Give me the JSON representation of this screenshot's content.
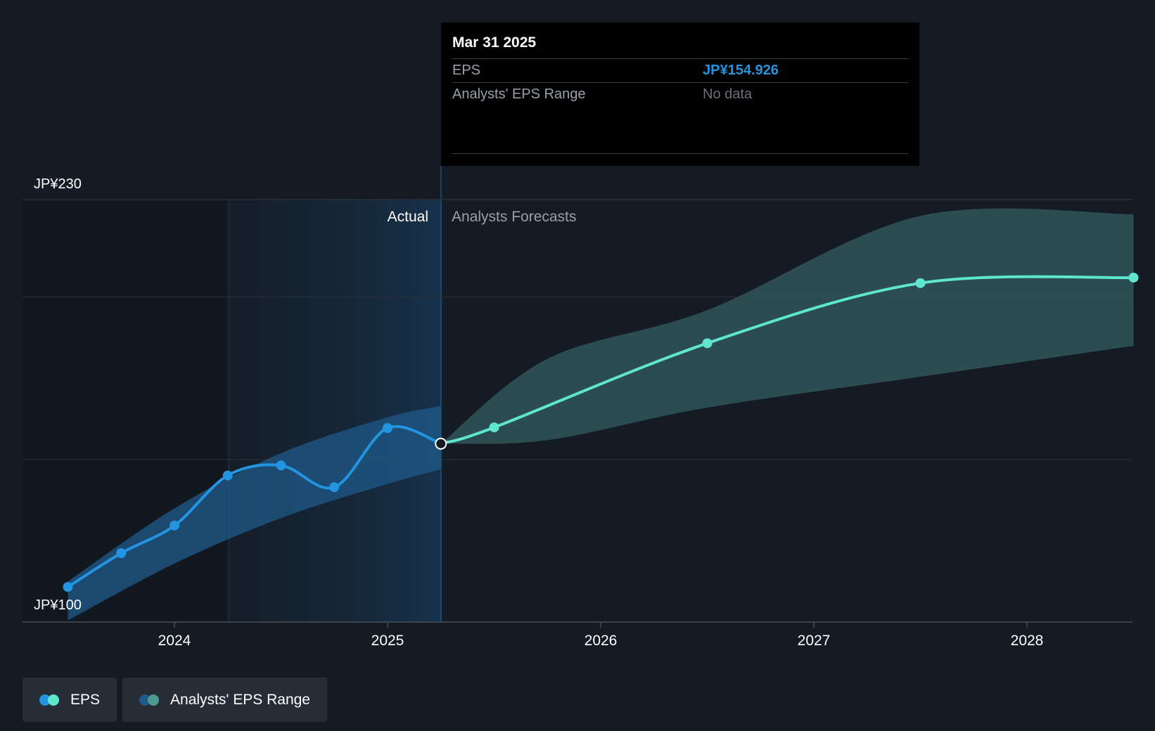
{
  "tooltip": {
    "date": "Mar 31 2025",
    "rows": [
      {
        "label": "EPS",
        "value": "JP¥154.926"
      },
      {
        "label": "Analysts' EPS Range",
        "value": "No data"
      }
    ]
  },
  "colors": {
    "background": "#151b24",
    "actual_line": "#2394df",
    "forecast_line": "#5ee6cf",
    "actual_band": "#1f5a8a",
    "forecast_band": "#2d5356"
  },
  "legend": [
    {
      "label": "EPS",
      "icon": "two-dot-eps-icon"
    },
    {
      "label": "Analysts' EPS Range",
      "icon": "two-dot-range-icon"
    }
  ],
  "chart_data": {
    "type": "line",
    "ylim": [
      100,
      230
    ],
    "y_tick_labels": [
      "JP¥230",
      "JP¥100"
    ],
    "x_tick_labels": [
      "2024",
      "2025",
      "2026",
      "2027",
      "2028"
    ],
    "region_labels": {
      "actual": "Actual",
      "forecast": "Analysts Forecasts"
    },
    "grid": true,
    "legend_position": "bottom-left",
    "series": [
      {
        "name": "EPS",
        "segment": "actual",
        "points": [
          {
            "x": 2023.5,
            "y": 110.8
          },
          {
            "x": 2023.75,
            "y": 121.2
          },
          {
            "x": 2024.0,
            "y": 129.7
          },
          {
            "x": 2024.25,
            "y": 145.1
          },
          {
            "x": 2024.5,
            "y": 148.2
          },
          {
            "x": 2024.75,
            "y": 141.5
          },
          {
            "x": 2025.0,
            "y": 159.7
          },
          {
            "x": 2025.25,
            "y": 154.9
          }
        ]
      },
      {
        "name": "EPS",
        "segment": "forecast",
        "points": [
          {
            "x": 2025.25,
            "y": 154.9
          },
          {
            "x": 2025.5,
            "y": 159.9
          },
          {
            "x": 2026.5,
            "y": 185.8
          },
          {
            "x": 2027.5,
            "y": 204.3
          },
          {
            "x": 2028.5,
            "y": 206.0
          }
        ]
      },
      {
        "name": "Analysts' EPS Range",
        "segment": "actual",
        "low": [
          {
            "x": 2023.5,
            "y": 100.5
          },
          {
            "x": 2024.0,
            "y": 118.0
          },
          {
            "x": 2024.5,
            "y": 132.0
          },
          {
            "x": 2025.0,
            "y": 142.5
          },
          {
            "x": 2025.25,
            "y": 147.0
          }
        ],
        "high": [
          {
            "x": 2023.5,
            "y": 112.5
          },
          {
            "x": 2024.0,
            "y": 135.0
          },
          {
            "x": 2024.5,
            "y": 152.0
          },
          {
            "x": 2025.0,
            "y": 163.0
          },
          {
            "x": 2025.25,
            "y": 166.5
          }
        ]
      },
      {
        "name": "Analysts' EPS Range",
        "segment": "forecast",
        "low": [
          {
            "x": 2025.25,
            "y": 154.9
          },
          {
            "x": 2025.75,
            "y": 156.0
          },
          {
            "x": 2026.5,
            "y": 166.0
          },
          {
            "x": 2027.5,
            "y": 175.5
          },
          {
            "x": 2028.5,
            "y": 185.0
          }
        ],
        "high": [
          {
            "x": 2025.25,
            "y": 154.9
          },
          {
            "x": 2025.75,
            "y": 181.0
          },
          {
            "x": 2026.5,
            "y": 196.0
          },
          {
            "x": 2027.5,
            "y": 225.0
          },
          {
            "x": 2028.5,
            "y": 225.5
          }
        ]
      }
    ]
  }
}
